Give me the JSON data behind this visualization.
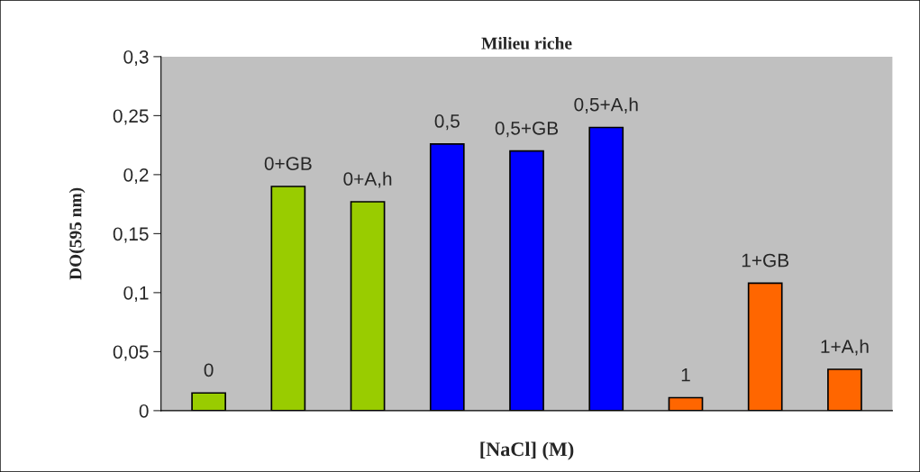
{
  "chart_data": {
    "type": "bar",
    "title": "Milieu riche",
    "xlabel": "[NaCl] (M)",
    "ylabel": "DO(595 nm)",
    "categories": [
      "0",
      "0+GB",
      "0+A,h",
      "0,5",
      "0,5+GB",
      "0,5+A,h",
      "1",
      "1+GB",
      "1+A,h"
    ],
    "values": [
      0.015,
      0.19,
      0.177,
      0.226,
      0.22,
      0.24,
      0.011,
      0.108,
      0.035
    ],
    "colors": [
      "#99cc00",
      "#99cc00",
      "#99cc00",
      "#0000ff",
      "#0000ff",
      "#0000ff",
      "#ff6600",
      "#ff6600",
      "#ff6600"
    ],
    "ylim": [
      0,
      0.3
    ],
    "yticks": [
      {
        "value": 0,
        "label": "0"
      },
      {
        "value": 0.05,
        "label": "0,05"
      },
      {
        "value": 0.1,
        "label": "0,1"
      },
      {
        "value": 0.15,
        "label": "0,15"
      },
      {
        "value": 0.2,
        "label": "0,2"
      },
      {
        "value": 0.25,
        "label": "0,25"
      },
      {
        "value": 0.3,
        "label": "0,3"
      }
    ],
    "tick_labels": "y",
    "grid": false,
    "legend": false
  }
}
